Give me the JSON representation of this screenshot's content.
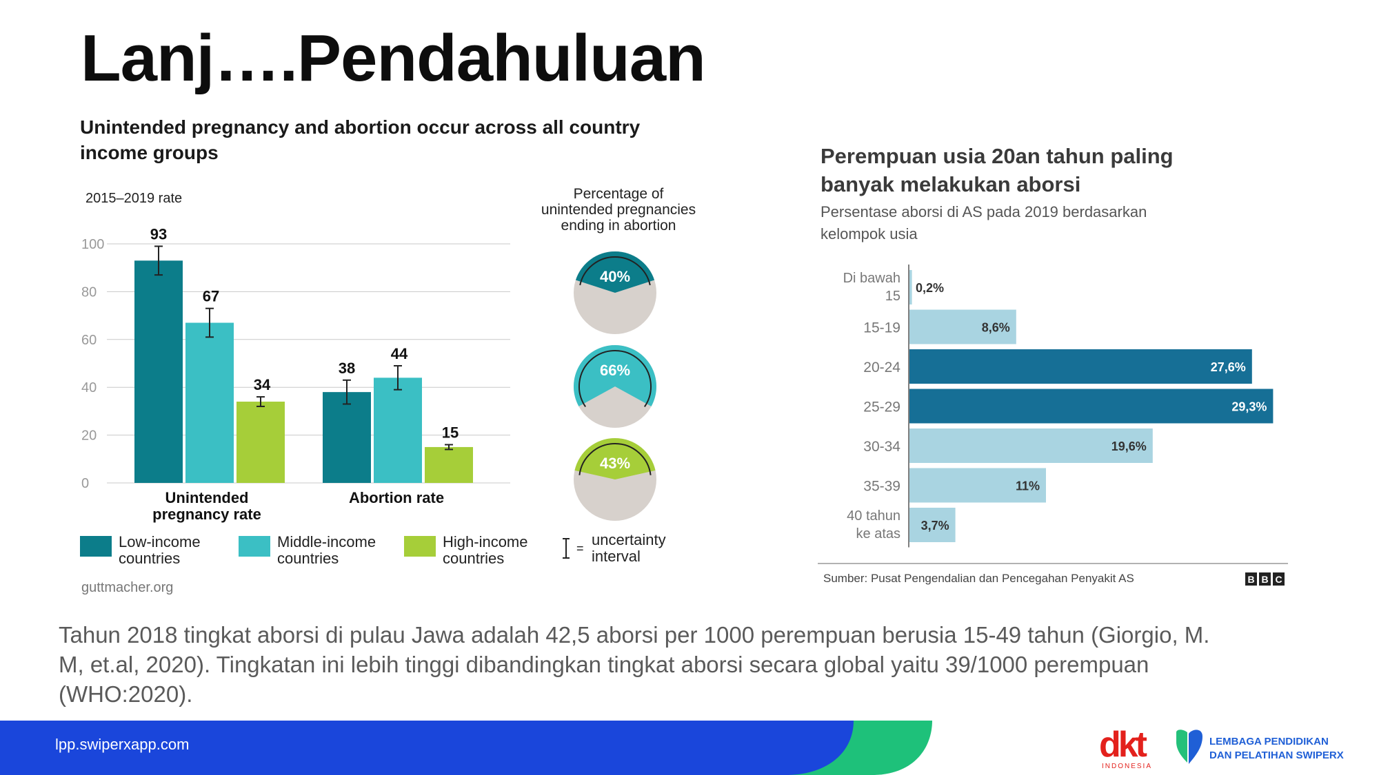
{
  "slide": {
    "title": "Lanj….Pendahuluan",
    "body_text": "Tahun 2018 tingkat aborsi di pulau Jawa adalah 42,5 aborsi per 1000 perempuan berusia 15-49 tahun (Giorgio, M. M, et.al, 2020). Tingkatan ini lebih tinggi dibandingkan tingkat aborsi secara global yaitu 39/1000 perempuan (WHO:2020).",
    "footer_url": "lpp.swiperxapp.com",
    "logo_dkt": {
      "mark": "dkt",
      "sub": "INDONESIA"
    },
    "logo_lpp": {
      "line1": "LEMBAGA PENDIDIKAN",
      "line2": "DAN PELATIHAN SWIPERX"
    }
  },
  "colors": {
    "low": "#0c7d8a",
    "middle": "#3bbfc4",
    "high": "#a6ce39",
    "dark_bar": "#166f96",
    "light_bar": "#a9d4e1",
    "footer_blue": "#1a46db",
    "footer_green": "#1ec17a",
    "dkt_red": "#e3211c",
    "lpp_blue": "#1f5fd6",
    "lpp_green": "#24c07a"
  },
  "chart_data": [
    {
      "type": "bar",
      "title": "Unintended pregnancy and abortion occur across all country income groups",
      "ylabel": "2015–2019 rate",
      "ylim": [
        0,
        100
      ],
      "yticks": [
        "100",
        "80",
        "60",
        "40",
        "20",
        "0"
      ],
      "categories": [
        "Unintended pregnancy rate",
        "Abortion rate"
      ],
      "series": [
        {
          "name": "Low-income countries",
          "values": [
            93,
            38
          ],
          "error": [
            [
              87,
              99
            ],
            [
              33,
              43
            ]
          ],
          "labels": [
            "93",
            "38"
          ]
        },
        {
          "name": "Middle-income countries",
          "values": [
            67,
            44
          ],
          "error": [
            [
              61,
              73
            ],
            [
              39,
              49
            ]
          ],
          "labels": [
            "67",
            "44"
          ]
        },
        {
          "name": "High-income countries",
          "values": [
            34,
            15
          ],
          "error": [
            [
              32,
              36
            ],
            [
              14,
              16
            ]
          ],
          "labels": [
            "34",
            "15"
          ]
        }
      ],
      "legend_uncertainty": "= uncertainty interval",
      "source": "guttmacher.org",
      "side_panel": {
        "title": "Percentage of unintended pregnancies ending in abortion",
        "items": [
          {
            "label": "40%",
            "value": 40
          },
          {
            "label": "66%",
            "value": 66
          },
          {
            "label": "43%",
            "value": 43
          }
        ]
      }
    },
    {
      "type": "bar",
      "orientation": "horizontal",
      "title": "Perempuan usia 20an tahun paling banyak melakukan aborsi",
      "subtitle": "Persentase aborsi di AS pada 2019 berdasarkan kelompok usia",
      "categories": [
        "Di bawah 15",
        "15-19",
        "20-24",
        "25-29",
        "30-34",
        "35-39",
        "40 tahun ke atas"
      ],
      "values": [
        0.2,
        8.6,
        27.6,
        29.3,
        19.6,
        11,
        3.7
      ],
      "labels": [
        "0,2%",
        "8,6%",
        "27,6%",
        "29,3%",
        "19,6%",
        "11%",
        "3,7%"
      ],
      "highlight": [
        false,
        false,
        true,
        true,
        false,
        false,
        false
      ],
      "source": "Sumber: Pusat Pengendalian dan Pencegahan Penyakit AS",
      "brand": [
        "B",
        "B",
        "C"
      ]
    }
  ]
}
